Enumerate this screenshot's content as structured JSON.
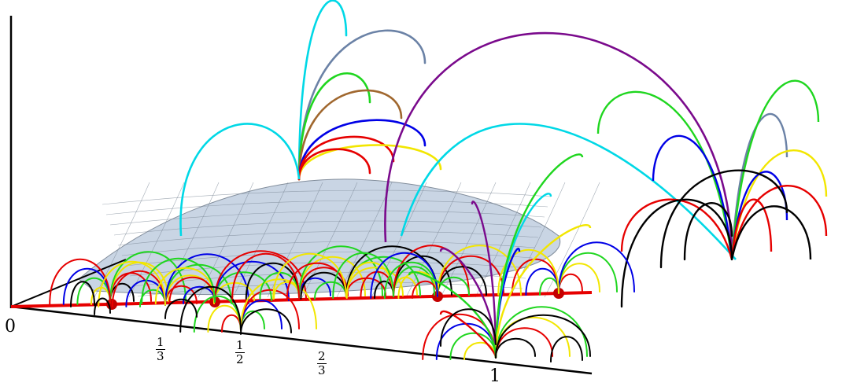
{
  "diagram": {
    "axis_labels": {
      "origin": "0",
      "third": {
        "num": "1",
        "den": "3"
      },
      "half": {
        "num": "1",
        "den": "2"
      },
      "two_thirds": {
        "num": "2",
        "den": "3"
      },
      "one": "1"
    },
    "colors": {
      "axis": "#000000",
      "red_line": "#e60000",
      "surface_fill": "#c7d3e3",
      "surface_grid": "#7b8796",
      "arc_palette": [
        "#000000",
        "#e60000",
        "#f2e600",
        "#1fd61f",
        "#0000e6",
        "#00d8e6",
        "#6b82a6",
        "#a0672e",
        "#7a0a8c"
      ]
    }
  }
}
